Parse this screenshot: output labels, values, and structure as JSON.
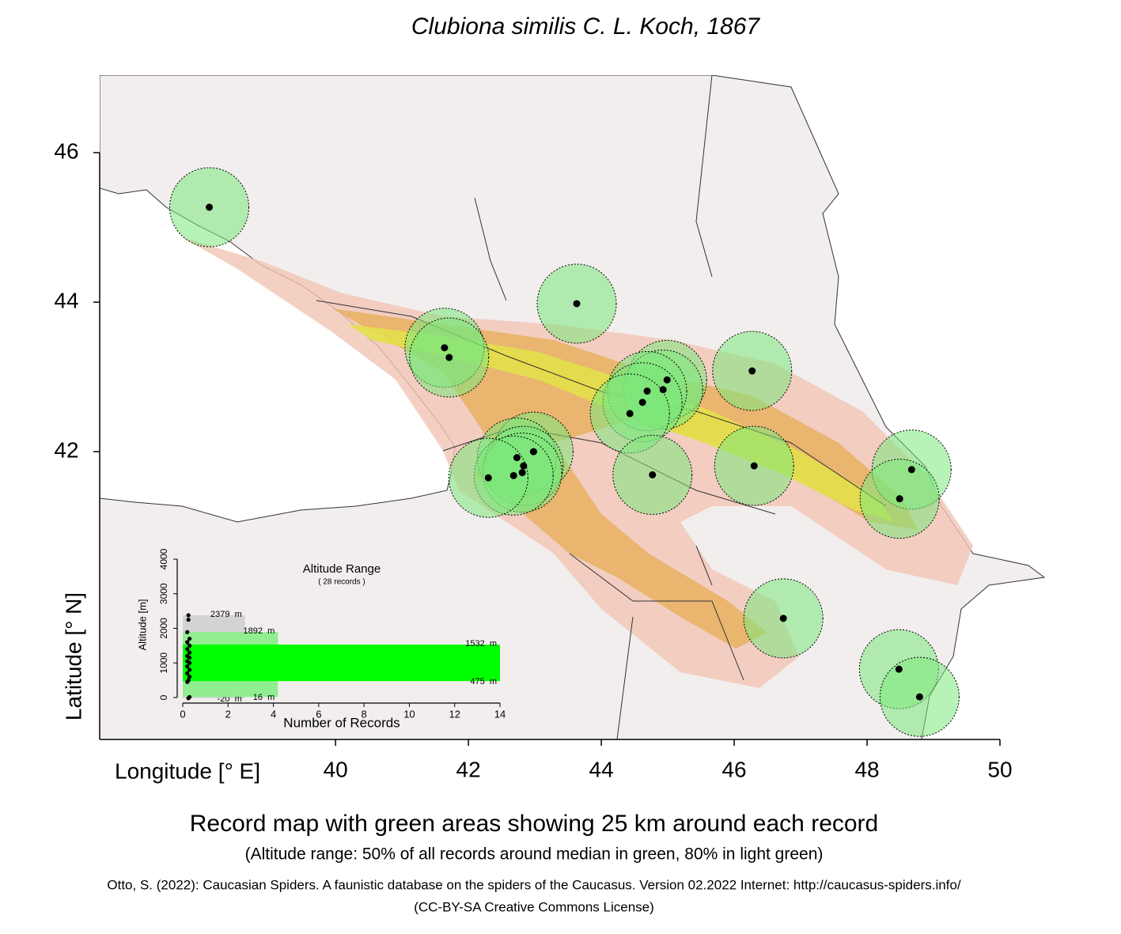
{
  "title": "Clubiona similis C. L. Koch, 1867",
  "map": {
    "xlabel": "Longitude [° E]",
    "ylabel": "Latitude [° N]",
    "xlim": [
      36.45,
      50
    ],
    "ylim": [
      38.15,
      47.0
    ],
    "xticks": [
      40,
      42,
      44,
      46,
      48,
      50
    ],
    "yticks": [
      42,
      44,
      46
    ],
    "records": {
      "lon": [
        38.1,
        43.63,
        41.64,
        41.71,
        44.99,
        44.93,
        44.69,
        44.62,
        44.43,
        46.27,
        42.98,
        42.73,
        42.83,
        42.81,
        42.68,
        42.3,
        44.77,
        46.3,
        48.67,
        48.49,
        46.74,
        48.48,
        48.79
      ],
      "lat": [
        45.27,
        43.98,
        43.39,
        43.26,
        42.96,
        42.83,
        42.81,
        42.66,
        42.51,
        43.08,
        42.0,
        41.92,
        41.81,
        41.72,
        41.68,
        41.65,
        41.69,
        41.81,
        41.76,
        41.37,
        39.77,
        39.09,
        38.72
      ]
    }
  },
  "inset": {
    "title": "Altitude Range",
    "subtitle": "( 28 records )",
    "xlabel": "Number of Records",
    "ylabel": "Altitude [m]",
    "xlim": [
      0,
      14
    ],
    "ylim": [
      0,
      4000
    ],
    "xticks": [
      0,
      2,
      4,
      6,
      8,
      10,
      12,
      14
    ],
    "yticks": [
      0,
      1000,
      2000,
      3000,
      4000
    ],
    "ranges": [
      {
        "low": -20,
        "high": 2379,
        "width": 2.75,
        "color": "#d3d3d3",
        "low_label": "-20  m",
        "high_label": "2379  m"
      },
      {
        "low": 16,
        "high": 1892,
        "width": 4.2,
        "color": "#90ee90",
        "low_label": "16  m",
        "high_label": "1892  m"
      },
      {
        "low": 475,
        "high": 1532,
        "width": 14,
        "color": "#00ff00",
        "low_label": "475  m",
        "high_label": "1532  m"
      }
    ],
    "points": {
      "x": [
        0.25,
        0.25,
        0.2,
        0.3,
        0.2,
        0.3,
        0.2,
        0.3,
        0.2,
        0.3,
        0.2,
        0.3,
        0.2,
        0.3,
        0.2,
        0.3,
        0.25,
        0.2,
        0.3,
        0.25
      ],
      "y": [
        2379,
        2250,
        1892,
        1700,
        1600,
        1500,
        1400,
        1300,
        1200,
        1150,
        1050,
        1000,
        900,
        800,
        700,
        600,
        500,
        450,
        16,
        -20
      ]
    }
  },
  "caption": "Record map with green areas showing 25 km around each record",
  "subcaption": "(Altitude range: 50% of all records around median in green, 80% in light green)",
  "credit": "Otto, S. (2022): Caucasian Spiders. A faunistic database on the spiders of the Caucasus. Version 02.2022 Internet: http://caucasus-spiders.info/",
  "license": "(CC-BY-SA Creative Commons License)"
}
